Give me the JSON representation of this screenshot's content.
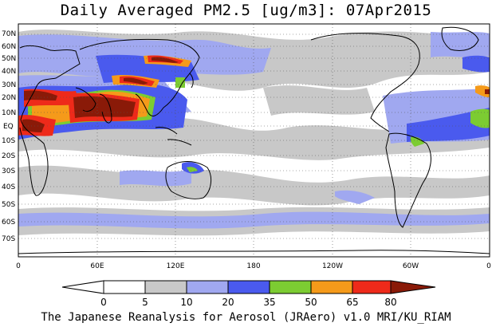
{
  "title": "Daily Averaged PM2.5 [ug/m3]: 07Apr2015",
  "footer": "The Japanese Reanalysis for Aerosol (JRAero) v1.0 MRI/KU_RIAM",
  "lat_labels": [
    "70N",
    "60N",
    "50N",
    "40N",
    "30N",
    "20N",
    "10N",
    "EQ",
    "10S",
    "20S",
    "30S",
    "40S",
    "50S",
    "60S",
    "70S"
  ],
  "lon_labels": [
    "0",
    "60E",
    "120E",
    "180",
    "120W",
    "60W",
    "0"
  ],
  "colorbar": {
    "ticks": [
      "0",
      "5",
      "10",
      "20",
      "35",
      "50",
      "65",
      "80"
    ],
    "colors": [
      "#ffffff",
      "#c8c8c8",
      "#a0a8f0",
      "#4a5aee",
      "#7ccc32",
      "#f59a1a",
      "#ee2a1a",
      "#8a1a08"
    ]
  }
}
